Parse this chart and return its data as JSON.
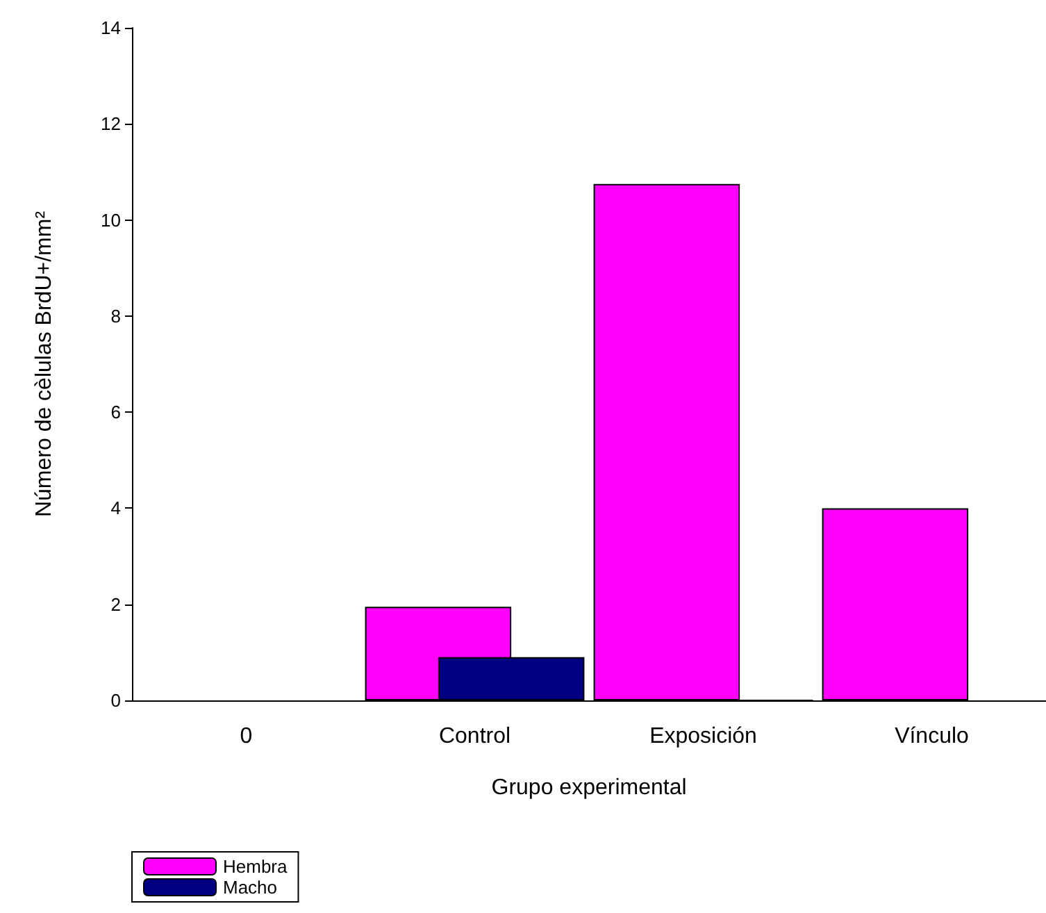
{
  "chart_data": {
    "type": "bar",
    "xlabel": "Grupo experimental",
    "ylabel": "Número de cèlulas BrdU+/mm²",
    "categories": [
      "0",
      "Control",
      "Exposición",
      "Vínculo"
    ],
    "series": [
      {
        "name": "Hembra",
        "color": "#ff00ff",
        "values": [
          null,
          1.95,
          10.75,
          4.0
        ]
      },
      {
        "name": "Macho",
        "color": "#000080",
        "values": [
          null,
          0.9,
          0,
          null
        ]
      }
    ],
    "ylim": [
      0,
      14
    ],
    "yticks": [
      0,
      2,
      4,
      6,
      8,
      10,
      12,
      14
    ],
    "grid": false,
    "legend": "bottom left"
  }
}
